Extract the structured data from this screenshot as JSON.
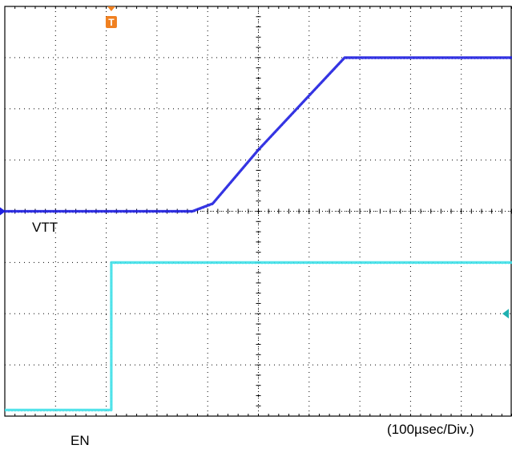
{
  "labels": {
    "vtt": "VTT",
    "en": "EN",
    "timebase": "(100µsec/Div.)"
  },
  "colors": {
    "background": "#ffffff",
    "grid": "#000000",
    "vtt_trace": "#2020e0",
    "en_trace": "#40e0e8",
    "trigger_marker": "#f08020",
    "ground_marker": "#20b0b0"
  },
  "icons": {
    "trigger": "trigger-T-marker",
    "ch1_ground": "triangle-right-marker",
    "ch2_ground": "triangle-left-marker"
  },
  "chart_data": {
    "type": "line",
    "grid": true,
    "x_divisions": 10,
    "y_divisions": 8,
    "xlim": [
      0,
      10
    ],
    "ylim": [
      0,
      8
    ],
    "series": [
      {
        "name": "VTT",
        "x": [
          0,
          3.7,
          4.1,
          5.0,
          6.7,
          10
        ],
        "y": [
          4.0,
          4.0,
          4.15,
          5.2,
          7.0,
          7.0
        ]
      },
      {
        "name": "EN",
        "x": [
          0,
          2.1,
          2.1,
          10
        ],
        "y": [
          0.12,
          0.12,
          3.0,
          3.0
        ]
      }
    ]
  }
}
